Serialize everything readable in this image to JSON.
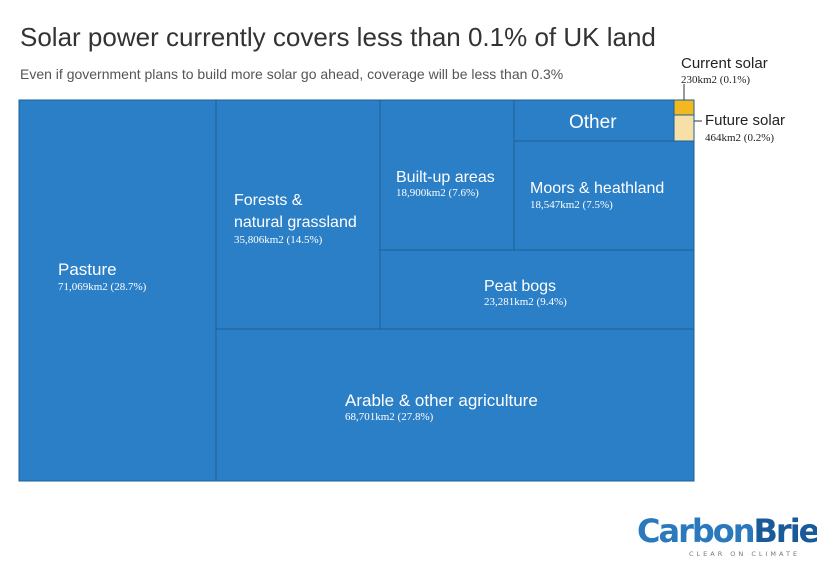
{
  "title": "Solar power currently covers less than 0.1% of UK land",
  "subtitle": "Even if government plans to build more solar go ahead, coverage will be less than 0.3%",
  "colors": {
    "main_block": "#2b7fc7",
    "current_solar": "#f2b81f",
    "future_solar": "#f7e0a8",
    "border": "#ffffff",
    "label_text": "#ffffff",
    "annotation_text": "#222222"
  },
  "chart_data": {
    "type": "treemap",
    "unit": "km2",
    "items": [
      {
        "name": "Pasture",
        "value": 71069,
        "value_label": "71,069km2 (28.7%)",
        "percent": 28.7
      },
      {
        "name": "Arable & other agriculture",
        "value": 68701,
        "value_label": "68,701km2 (27.8%)",
        "percent": 27.8
      },
      {
        "name": "Forests & natural grassland",
        "value": 35806,
        "value_label": "35,806km2 (14.5%)",
        "percent": 14.5
      },
      {
        "name": "Peat bogs",
        "value": 23281,
        "value_label": "23,281km2 (9.4%)",
        "percent": 9.4
      },
      {
        "name": "Built-up areas",
        "value": 18900,
        "value_label": "18,900km2 (7.6%)",
        "percent": 7.6
      },
      {
        "name": "Moors & heathland",
        "value": 18547,
        "value_label": "18,547km2 (7.5%)",
        "percent": 7.5
      },
      {
        "name": "Other",
        "value": null,
        "value_label": "",
        "percent": null
      },
      {
        "name": "Current solar",
        "value": 230,
        "value_label": "230km2 (0.1%)",
        "percent": 0.1
      },
      {
        "name": "Future solar",
        "value": 464,
        "value_label": "464km2 (0.2%)",
        "percent": 0.2
      }
    ]
  },
  "logo": {
    "part1": "Carbon",
    "part2": "Brief",
    "tagline": "CLEAR ON CLIMATE"
  }
}
